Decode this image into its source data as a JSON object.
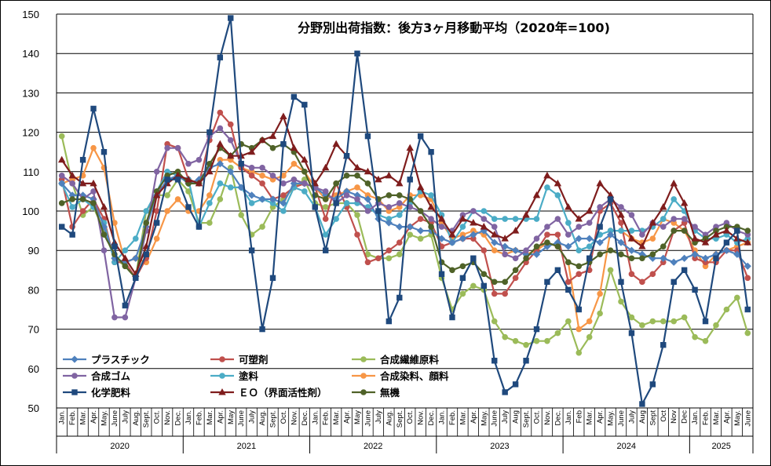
{
  "chart_data": {
    "type": "line",
    "title": "分野別出荷指数：後方3ヶ月移動平均（2020年=100)",
    "xlabel": "",
    "ylabel": "",
    "ylim": [
      50,
      150
    ],
    "yticks": [
      50,
      60,
      70,
      80,
      90,
      100,
      110,
      120,
      130,
      140,
      150
    ],
    "grid": "horizontal",
    "legend_position": "bottom-left",
    "x_months": [
      "Jan.",
      "Feb.",
      "Mar.",
      "Apr.",
      "May.",
      "June",
      "July",
      "Aug.",
      "Sept.",
      "Oct.",
      "Nov.",
      "Dec.",
      "Jan.",
      "Feb.",
      "Mar.",
      "Apr.",
      "May",
      "June",
      "July",
      "Aug.",
      "Sept.",
      "Oct.",
      "Nov.",
      "Dec.",
      "Jan.",
      "Feb.",
      "Mar.",
      "Apr.",
      "May",
      "June",
      "July",
      "Aug.",
      "Sept.",
      "Oct.",
      "Nov.",
      "Dec.",
      "Jan.",
      "Feb.",
      "Mar.",
      "Apr.",
      "May.",
      "June",
      "July",
      "Aug",
      "Sept.",
      "Oct.",
      "Nov.",
      "Dec.",
      "Jan.",
      "Feb",
      "Mar.",
      "Apr.",
      "May.",
      "June",
      "July",
      "Aug",
      "Sept",
      "Oct",
      "Nov",
      "Dec",
      "Jan.",
      "Feb.",
      "Mar.",
      "Apr.",
      "May.",
      "June"
    ],
    "years": [
      {
        "label": "2020",
        "start": 0,
        "end": 11
      },
      {
        "label": "2021",
        "start": 12,
        "end": 23
      },
      {
        "label": "2022",
        "start": 24,
        "end": 35
      },
      {
        "label": "2023",
        "start": 36,
        "end": 47
      },
      {
        "label": "2024",
        "start": 48,
        "end": 59
      },
      {
        "label": "2025",
        "start": 60,
        "end": 65
      }
    ],
    "series": [
      {
        "name": "プラスチック",
        "color": "#4f81bd",
        "marker": "diamond",
        "values": [
          107,
          104,
          104,
          103,
          96,
          88,
          87,
          88,
          96,
          104,
          108,
          109,
          107,
          108,
          111,
          112,
          110,
          106,
          104,
          103,
          103,
          102,
          107,
          107,
          106,
          104,
          103,
          105,
          104,
          103,
          98,
          97,
          96,
          96,
          95,
          95,
          93,
          92,
          93,
          94,
          95,
          92,
          91,
          90,
          89,
          89,
          91,
          92,
          91,
          93,
          93,
          92,
          94,
          92,
          90,
          89,
          88,
          88,
          87,
          88,
          89,
          88,
          89,
          90,
          89,
          86
        ]
      },
      {
        "name": "可塑剤",
        "color": "#c0504d",
        "marker": "circle",
        "values": [
          108,
          96,
          100,
          103,
          98,
          87,
          87,
          83,
          88,
          100,
          117,
          116,
          108,
          107,
          118,
          125,
          122,
          111,
          109,
          107,
          103,
          104,
          106,
          107,
          106,
          98,
          107,
          101,
          94,
          87,
          88,
          90,
          92,
          96,
          98,
          97,
          91,
          92,
          93,
          93,
          90,
          79,
          79,
          83,
          87,
          90,
          94,
          94,
          82,
          84,
          85,
          100,
          102,
          97,
          84,
          82,
          84,
          87,
          95,
          97,
          88,
          87,
          87,
          90,
          90,
          83
        ]
      },
      {
        "name": "合成繊維原料",
        "color": "#9bbb59",
        "marker": "circle",
        "values": [
          119,
          107,
          99,
          101,
          95,
          88,
          86,
          83,
          100,
          104,
          104,
          108,
          105,
          97,
          97,
          103,
          111,
          99,
          94,
          96,
          101,
          103,
          106,
          108,
          102,
          101,
          102,
          102,
          99,
          89,
          88,
          88,
          89,
          94,
          93,
          94,
          83,
          75,
          79,
          81,
          80,
          72,
          68,
          67,
          66,
          67,
          67,
          69,
          72,
          64,
          68,
          74,
          85,
          77,
          73,
          71,
          72,
          72,
          72,
          73,
          68,
          67,
          71,
          75,
          78,
          69
        ]
      },
      {
        "name": "合成ゴム",
        "color": "#8064a2",
        "marker": "circle",
        "values": [
          109,
          107,
          103,
          105,
          90,
          73,
          73,
          83,
          95,
          110,
          116,
          116,
          112,
          113,
          119,
          121,
          118,
          112,
          111,
          111,
          109,
          107,
          108,
          107,
          106,
          105,
          102,
          104,
          103,
          100,
          102,
          101,
          102,
          101,
          100,
          98,
          96,
          95,
          99,
          100,
          98,
          96,
          89,
          88,
          90,
          93,
          96,
          98,
          94,
          96,
          97,
          101,
          103,
          101,
          99,
          94,
          97,
          96,
          98,
          98,
          96,
          94,
          96,
          97,
          95,
          94
        ]
      },
      {
        "name": "塗料",
        "color": "#4bacc6",
        "marker": "circle",
        "values": [
          107,
          101,
          103,
          101,
          97,
          87,
          90,
          93,
          100,
          105,
          110,
          109,
          108,
          96,
          102,
          107,
          106,
          106,
          102,
          103,
          102,
          100,
          106,
          105,
          101,
          94,
          98,
          102,
          102,
          101,
          99,
          98,
          99,
          102,
          105,
          104,
          99,
          92,
          96,
          100,
          100,
          98,
          98,
          98,
          98,
          98,
          106,
          104,
          97,
          90,
          91,
          94,
          95,
          95,
          95,
          95,
          96,
          98,
          103,
          100,
          95,
          93,
          93,
          94,
          92,
          93
        ]
      },
      {
        "name": "合成染料、顔料",
        "color": "#f79646",
        "marker": "circle",
        "values": [
          107,
          108,
          109,
          116,
          111,
          97,
          87,
          88,
          87,
          93,
          100,
          103,
          100,
          100,
          104,
          113,
          113,
          111,
          110,
          109,
          108,
          109,
          112,
          110,
          106,
          103,
          104,
          105,
          106,
          104,
          103,
          100,
          101,
          104,
          104,
          103,
          97,
          93,
          94,
          95,
          94,
          90,
          89,
          90,
          89,
          90,
          92,
          91,
          87,
          70,
          72,
          79,
          95,
          95,
          93,
          92,
          93,
          98,
          97,
          95,
          90,
          86,
          89,
          90,
          91,
          92
        ]
      },
      {
        "name": "化学肥料",
        "color": "#1f497d",
        "marker": "square",
        "values": [
          96,
          94,
          113,
          126,
          115,
          91,
          76,
          83,
          89,
          97,
          108,
          108,
          101,
          96,
          120,
          139,
          149,
          112,
          90,
          70,
          83,
          117,
          129,
          127,
          101,
          90,
          102,
          114,
          140,
          119,
          100,
          72,
          78,
          108,
          119,
          115,
          84,
          73,
          83,
          88,
          81,
          62,
          54,
          56,
          62,
          70,
          82,
          85,
          80,
          75,
          88,
          96,
          103,
          82,
          69,
          51,
          56,
          66,
          82,
          85,
          80,
          72,
          88,
          92,
          95,
          75
        ]
      },
      {
        "name": "ＥＯ（界面活性剤）",
        "color": "#7f1d1d",
        "marker": "triangle",
        "values": [
          113,
          109,
          107,
          107,
          101,
          92,
          88,
          84,
          91,
          104,
          107,
          109,
          108,
          107,
          110,
          117,
          114,
          114,
          115,
          118,
          119,
          124,
          116,
          113,
          107,
          111,
          117,
          114,
          111,
          110,
          108,
          109,
          107,
          116,
          106,
          101,
          98,
          94,
          98,
          97,
          96,
          94,
          93,
          95,
          99,
          104,
          109,
          107,
          101,
          98,
          100,
          107,
          104,
          99,
          93,
          91,
          97,
          101,
          107,
          102,
          93,
          92,
          94,
          95,
          93,
          92
        ]
      },
      {
        "name": "無機",
        "color": "#4f6228",
        "marker": "circle",
        "values": [
          102,
          103,
          103,
          102,
          94,
          89,
          86,
          83,
          97,
          105,
          109,
          110,
          107,
          107,
          112,
          116,
          114,
          117,
          116,
          118,
          116,
          117,
          115,
          110,
          104,
          103,
          107,
          109,
          109,
          107,
          103,
          104,
          104,
          103,
          100,
          96,
          87,
          85,
          86,
          87,
          84,
          82,
          82,
          85,
          88,
          91,
          92,
          91,
          87,
          86,
          87,
          89,
          90,
          89,
          88,
          88,
          89,
          91,
          95,
          95,
          92,
          93,
          95,
          96,
          96,
          95
        ]
      }
    ]
  }
}
